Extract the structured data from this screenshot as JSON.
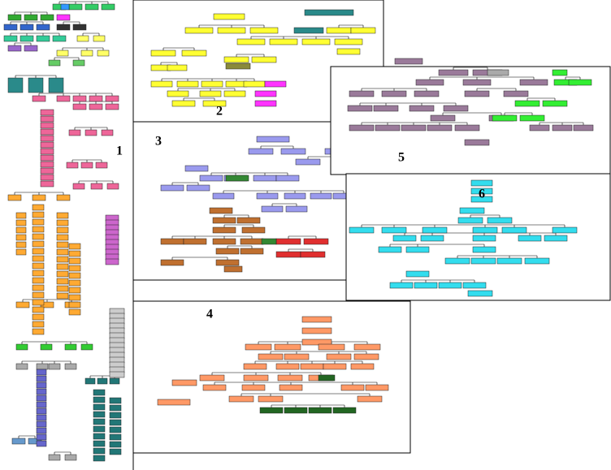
{
  "panels": [
    {
      "label": "1"
    },
    {
      "label": "2"
    },
    {
      "label": "3"
    },
    {
      "label": "4"
    },
    {
      "label": "5"
    },
    {
      "label": "6"
    }
  ]
}
